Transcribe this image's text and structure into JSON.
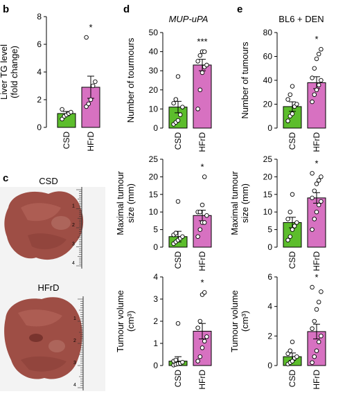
{
  "panel_letters": {
    "b": "b",
    "c": "c",
    "d": "d",
    "e": "e"
  },
  "titles": {
    "d": "MUP-uPA",
    "e": "BL6 + DEN"
  },
  "photo_labels": {
    "top": "CSD",
    "bottom": "HFrD"
  },
  "ruler_numbers": [
    "1",
    "2",
    "3",
    "4"
  ],
  "colors": {
    "csd": "#5cbd2c",
    "hfrd": "#d771c1",
    "photo_bg": "#f3f3f3",
    "liver": "#9e4e45"
  },
  "chart_data": [
    {
      "id": "b",
      "type": "bar",
      "categories": [
        "CSD",
        "HFrD"
      ],
      "ylabel_lines": [
        "Liver TG level",
        "(fold change)"
      ],
      "ylim": [
        0,
        8
      ],
      "yticks": [
        "0",
        "2",
        "4",
        "6",
        "8"
      ],
      "values": [
        1.0,
        2.9
      ],
      "errors": [
        0.15,
        0.8
      ],
      "points": [
        [
          0.6,
          0.8,
          0.9,
          1.0,
          1.1,
          1.3
        ],
        [
          1.5,
          1.7,
          2.0,
          3.0,
          3.3,
          6.5
        ]
      ],
      "significance": "*"
    },
    {
      "id": "d1",
      "type": "bar",
      "categories": [
        "CSD",
        "HFrD"
      ],
      "ylabel_lines": [
        "Number of tourmours"
      ],
      "ylim": [
        0,
        50
      ],
      "yticks": [
        "0",
        "10",
        "20",
        "30",
        "40",
        "50"
      ],
      "values": [
        11,
        33
      ],
      "errors": [
        3,
        3
      ],
      "points": [
        [
          2,
          3,
          4,
          7,
          11,
          13,
          15,
          27
        ],
        [
          10,
          20,
          29,
          32,
          33,
          35,
          38,
          40,
          40
        ]
      ],
      "significance": "***"
    },
    {
      "id": "d2",
      "type": "bar",
      "categories": [
        "CSD",
        "HFrD"
      ],
      "ylabel_lines": [
        "Maximal tumour",
        "size (mm)"
      ],
      "ylim": [
        0,
        25
      ],
      "yticks": [
        "0",
        "5",
        "10",
        "15",
        "20",
        "25"
      ],
      "values": [
        3,
        9
      ],
      "errors": [
        1.5,
        1.5
      ],
      "points": [
        [
          1,
          1.5,
          2,
          2.5,
          3,
          3.5,
          4,
          13
        ],
        [
          3,
          5,
          7,
          7,
          9,
          10,
          10,
          12,
          20
        ]
      ],
      "significance": "*"
    },
    {
      "id": "d3",
      "type": "bar",
      "categories": [
        "CSD",
        "HFrD"
      ],
      "ylabel_lines": [
        "Tumour volume",
        "(cm³)"
      ],
      "ylim": [
        0,
        4
      ],
      "yticks": [
        "0",
        "1",
        "2",
        "3",
        "4"
      ],
      "values": [
        0.2,
        1.55
      ],
      "errors": [
        0.2,
        0.35
      ],
      "points": [
        [
          0.02,
          0.05,
          0.08,
          0.1,
          0.15,
          0.2,
          0.25,
          1.9
        ],
        [
          0.2,
          0.4,
          0.8,
          1.1,
          1.3,
          1.7,
          2.0,
          3.2,
          3.3
        ]
      ],
      "significance": "*"
    },
    {
      "id": "e1",
      "type": "bar",
      "categories": [
        "CSD",
        "HFrD"
      ],
      "ylabel_lines": [
        "Number of tumours"
      ],
      "ylim": [
        0,
        80
      ],
      "yticks": [
        "0",
        "20",
        "40",
        "60",
        "80"
      ],
      "values": [
        18,
        38
      ],
      "errors": [
        4,
        5
      ],
      "points": [
        [
          6,
          10,
          12,
          18,
          20,
          24,
          28,
          35
        ],
        [
          22,
          28,
          32,
          36,
          40,
          42,
          50,
          58,
          62,
          66
        ]
      ],
      "significance": "*"
    },
    {
      "id": "e2",
      "type": "bar",
      "categories": [
        "CSD",
        "HFrD"
      ],
      "ylabel_lines": [
        "Maximal tumour",
        "size (mm)"
      ],
      "ylim": [
        0,
        25
      ],
      "yticks": [
        "0",
        "5",
        "10",
        "15",
        "20",
        "25"
      ],
      "values": [
        7,
        14
      ],
      "errors": [
        1.5,
        1.5
      ],
      "points": [
        [
          2,
          3,
          5,
          6,
          7,
          8,
          10,
          15
        ],
        [
          5,
          8,
          10,
          12,
          13,
          14,
          16,
          18,
          19,
          20,
          21
        ]
      ],
      "significance": "*"
    },
    {
      "id": "e3",
      "type": "bar",
      "categories": [
        "CSD",
        "HFrD"
      ],
      "ylabel_lines": [
        "Tumour volume",
        "(cm³)"
      ],
      "ylim": [
        0,
        6
      ],
      "yticks": [
        "0",
        "2",
        "4",
        "6"
      ],
      "values": [
        0.6,
        2.3
      ],
      "errors": [
        0.25,
        0.5
      ],
      "points": [
        [
          0.1,
          0.2,
          0.3,
          0.5,
          0.6,
          0.8,
          1.0,
          1.6
        ],
        [
          0.2,
          0.6,
          1.0,
          1.6,
          2.0,
          2.5,
          3.0,
          3.8,
          4.3,
          5.0,
          5.3
        ]
      ],
      "significance": "*"
    }
  ]
}
